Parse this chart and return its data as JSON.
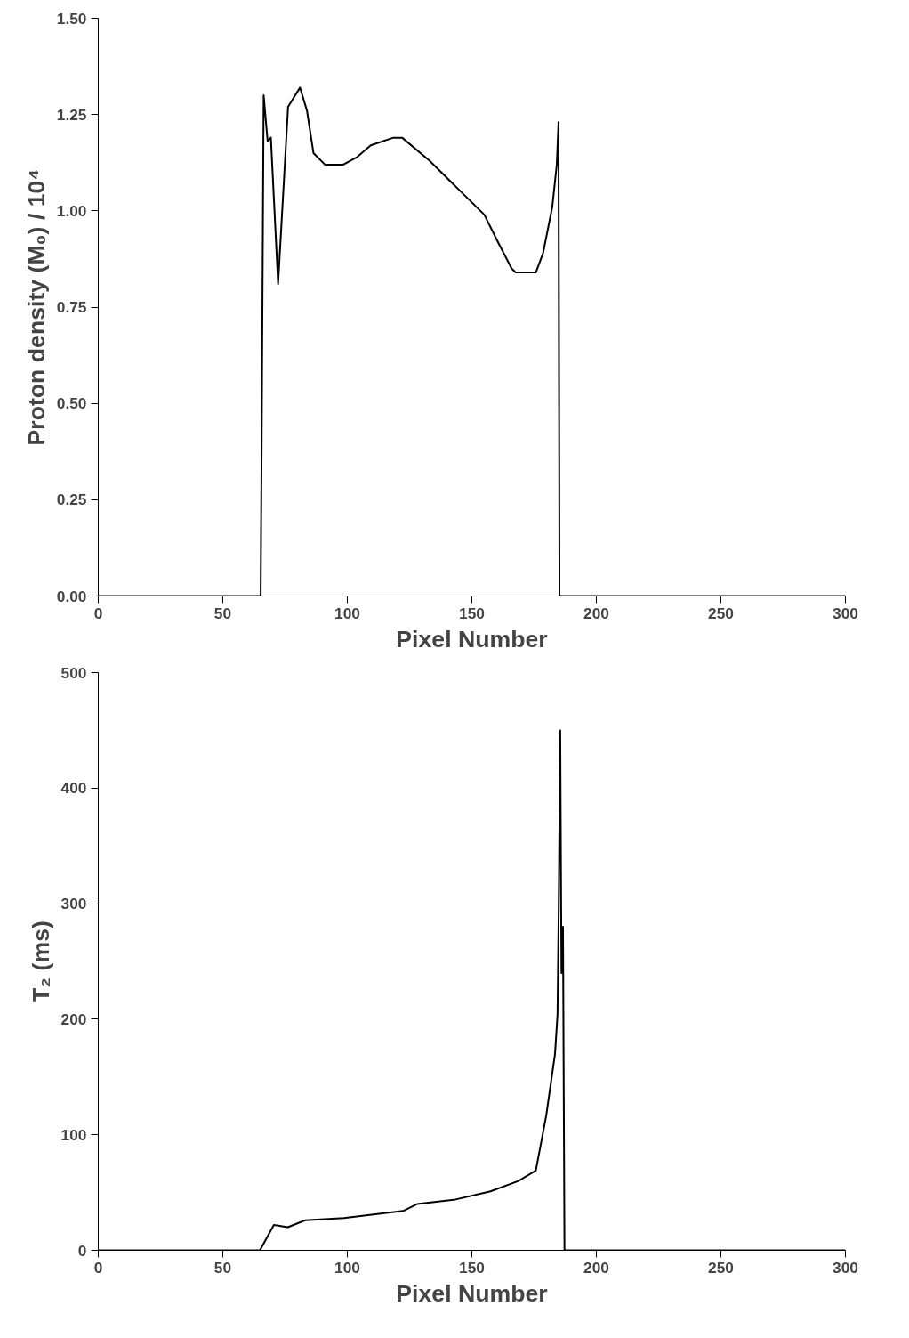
{
  "chart_data": [
    {
      "type": "line",
      "xlabel": "Pixel Number",
      "ylabel": "Proton density (M₀) / 10⁴",
      "xlim": [
        0,
        300
      ],
      "ylim": [
        0,
        1.5
      ],
      "xticks": [
        0,
        50,
        100,
        150,
        200,
        250,
        300
      ],
      "yticks": [
        {
          "value": 0,
          "label": "0.00"
        },
        {
          "value": 0.25,
          "label": "0.25"
        },
        {
          "value": 0.5,
          "label": "0.50"
        },
        {
          "value": 0.75,
          "label": "0.75"
        },
        {
          "value": 1,
          "label": "1.00"
        },
        {
          "value": 1.25,
          "label": "1.25"
        },
        {
          "value": 1.5,
          "label": "1.50"
        }
      ],
      "grid": false,
      "series": [
        {
          "color": "#000000",
          "x": [
            0,
            30,
            65.2,
            65.6,
            66.4,
            68,
            69.3,
            72.2,
            76.2,
            81,
            83.8,
            86.4,
            91,
            98.4,
            104,
            109.4,
            118.5,
            122,
            133,
            144,
            155,
            160.4,
            166,
            167.6,
            175.7,
            178.6,
            182.3,
            184.1,
            184.8,
            185.2,
            190,
            250,
            300
          ],
          "values": [
            0,
            0,
            0,
            0.4,
            1.3,
            1.18,
            1.19,
            0.81,
            1.27,
            1.32,
            1.26,
            1.15,
            1.12,
            1.12,
            1.14,
            1.17,
            1.19,
            1.19,
            1.13,
            1.06,
            0.99,
            0.92,
            0.85,
            0.84,
            0.84,
            0.89,
            1.01,
            1.12,
            1.23,
            0,
            0,
            0,
            0
          ]
        }
      ]
    },
    {
      "type": "line",
      "xlabel": "Pixel Number",
      "ylabel": "T₂ (ms)",
      "xlim": [
        0,
        300
      ],
      "ylim": [
        0,
        500
      ],
      "xticks": [
        0,
        50,
        100,
        150,
        200,
        250,
        300
      ],
      "yticks": [
        0,
        100,
        200,
        300,
        400,
        500
      ],
      "grid": false,
      "series": [
        {
          "color": "#000000",
          "x": [
            0,
            30,
            64.9,
            70.5,
            76.1,
            83.1,
            98.6,
            122.4,
            128,
            143.5,
            157.5,
            168.7,
            175.7,
            179.9,
            183.4,
            184.4,
            184.9,
            185.5,
            186,
            186.6,
            187.2,
            200,
            300
          ],
          "values": [
            0,
            0,
            0,
            22,
            20,
            26,
            28,
            34,
            40,
            44,
            51,
            60,
            69,
            117,
            170,
            204,
            300,
            450,
            240,
            280,
            0,
            0,
            0
          ]
        }
      ]
    }
  ]
}
